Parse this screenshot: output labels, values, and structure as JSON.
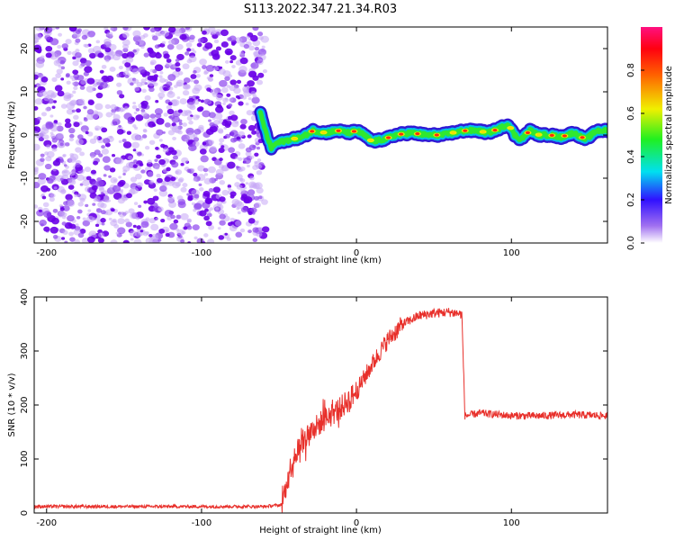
{
  "title": "S113.2022.347.21.34.R03",
  "chart_data": [
    {
      "type": "heatmap",
      "xlabel": "Height of straight line (km)",
      "ylabel": "Frequency (Hz)",
      "xlim": [
        -208,
        162
      ],
      "ylim": [
        -25,
        25
      ],
      "xticks": [
        "-200",
        "-100",
        "0",
        "100"
      ],
      "yticks": [
        "20",
        "10",
        "0",
        "-10",
        "-20"
      ],
      "colorbar": {
        "label": "Normalized spectral amplitude",
        "range": [
          0,
          1
        ],
        "ticks": [
          "0.0",
          "0.2",
          "0.4",
          "0.6",
          "0.8"
        ]
      },
      "noise_region": {
        "x_from": -208,
        "x_to": -62
      },
      "signal_track": {
        "x": [
          -62,
          -58,
          -55,
          -52,
          -48,
          -42,
          -35,
          -28,
          -20,
          -12,
          -5,
          0,
          5,
          10,
          18,
          25,
          35,
          45,
          55,
          62,
          70,
          78,
          85,
          92,
          98,
          102,
          106,
          112,
          118,
          125,
          132,
          140,
          148,
          155,
          162
        ],
        "freq": [
          5,
          0,
          -3,
          -2,
          -1.5,
          -1,
          -0.5,
          1,
          0.5,
          1,
          0.5,
          1,
          0,
          -1.5,
          -1,
          0,
          0.5,
          0,
          0,
          0.5,
          1,
          1,
          0.5,
          1.5,
          2.5,
          0,
          -1,
          1,
          0,
          0,
          -0.5,
          0.5,
          -1,
          1,
          1
        ]
      }
    },
    {
      "type": "line",
      "xlabel": "Height of straight line (km)",
      "ylabel": "SNR (10 * v/v)",
      "xlim": [
        -208,
        162
      ],
      "ylim": [
        0,
        400
      ],
      "xticks": [
        "-200",
        "-100",
        "0",
        "100"
      ],
      "yticks": [
        "400",
        "300",
        "200",
        "100",
        "0"
      ],
      "color": "#e8302b",
      "series": [
        {
          "x": [
            -208,
            -150,
            -100,
            -60,
            -48,
            -45,
            -40,
            -30,
            -20,
            -10,
            0,
            10,
            20,
            30,
            40,
            50,
            60,
            68,
            70,
            80,
            100,
            120,
            140,
            162
          ],
          "y": [
            12,
            12,
            12,
            12,
            15,
            60,
            110,
            150,
            175,
            195,
            225,
            275,
            320,
            350,
            365,
            370,
            372,
            368,
            180,
            185,
            180,
            180,
            182,
            180
          ]
        }
      ]
    }
  ]
}
